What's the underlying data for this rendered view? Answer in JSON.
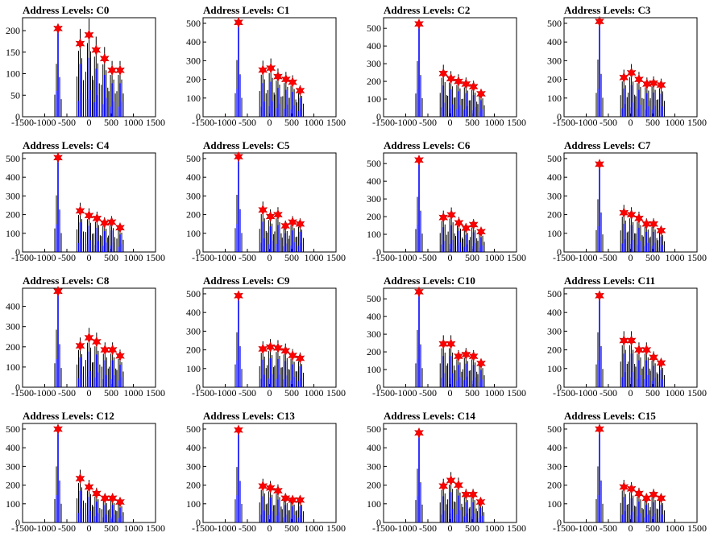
{
  "chart_data": [
    {
      "type": "bar",
      "title": "Address Levels: C0",
      "xlim": [
        -1500,
        1500
      ],
      "ylim": [
        0,
        230
      ],
      "xticks": [
        "-1500",
        "-1000",
        "-500",
        "0",
        "500",
        "1000",
        "1500"
      ],
      "yticks": [
        "0",
        "50",
        "100",
        "150",
        "200"
      ],
      "peaks": [
        {
          "x": -700,
          "y": 205
        },
        {
          "x": -200,
          "y": 170
        },
        {
          "x": 0,
          "y": 190
        },
        {
          "x": 160,
          "y": 155
        },
        {
          "x": 350,
          "y": 135
        },
        {
          "x": 520,
          "y": 108
        },
        {
          "x": 700,
          "y": 108
        }
      ]
    },
    {
      "type": "bar",
      "title": "Address Levels: C1",
      "xlim": [
        -1500,
        1500
      ],
      "ylim": [
        0,
        530
      ],
      "xticks": [
        "-1500",
        "-1000",
        "-500",
        "0",
        "500",
        "1000",
        "1500"
      ],
      "yticks": [
        "0",
        "100",
        "200",
        "300",
        "400",
        "500"
      ],
      "peaks": [
        {
          "x": -700,
          "y": 505
        },
        {
          "x": -150,
          "y": 250
        },
        {
          "x": 30,
          "y": 260
        },
        {
          "x": 190,
          "y": 215
        },
        {
          "x": 370,
          "y": 200
        },
        {
          "x": 520,
          "y": 185
        },
        {
          "x": 690,
          "y": 140
        }
      ]
    },
    {
      "type": "bar",
      "title": "Address Levels: C2",
      "xlim": [
        -1500,
        1500
      ],
      "ylim": [
        0,
        560
      ],
      "xticks": [
        "-1500",
        "-1000",
        "-500",
        "0",
        "500",
        "1000",
        "1500"
      ],
      "yticks": [
        "0",
        "100",
        "200",
        "300",
        "400",
        "500"
      ],
      "peaks": [
        {
          "x": -700,
          "y": 525
        },
        {
          "x": -150,
          "y": 245
        },
        {
          "x": 20,
          "y": 215
        },
        {
          "x": 190,
          "y": 200
        },
        {
          "x": 360,
          "y": 185
        },
        {
          "x": 530,
          "y": 170
        },
        {
          "x": 700,
          "y": 130
        }
      ]
    },
    {
      "type": "bar",
      "title": "Address Levels: C3",
      "xlim": [
        -1500,
        1500
      ],
      "ylim": [
        0,
        530
      ],
      "xticks": [
        "-1500",
        "-1000",
        "-500",
        "0",
        "500",
        "1000",
        "1500"
      ],
      "yticks": [
        "0",
        "100",
        "200",
        "300",
        "400",
        "500"
      ],
      "peaks": [
        {
          "x": -700,
          "y": 510
        },
        {
          "x": -150,
          "y": 210
        },
        {
          "x": 20,
          "y": 235
        },
        {
          "x": 190,
          "y": 200
        },
        {
          "x": 370,
          "y": 175
        },
        {
          "x": 520,
          "y": 180
        },
        {
          "x": 690,
          "y": 170
        }
      ]
    },
    {
      "type": "bar",
      "title": "Address Levels: C4",
      "xlim": [
        -1500,
        1500
      ],
      "ylim": [
        0,
        530
      ],
      "xticks": [
        "-1500",
        "-1000",
        "-500",
        "0",
        "500",
        "1000",
        "1500"
      ],
      "yticks": [
        "0",
        "100",
        "200",
        "300",
        "400",
        "500"
      ],
      "peaks": [
        {
          "x": -700,
          "y": 505
        },
        {
          "x": -200,
          "y": 220
        },
        {
          "x": 0,
          "y": 195
        },
        {
          "x": 180,
          "y": 180
        },
        {
          "x": 350,
          "y": 155
        },
        {
          "x": 510,
          "y": 160
        },
        {
          "x": 700,
          "y": 130
        }
      ]
    },
    {
      "type": "bar",
      "title": "Address Levels: C5",
      "xlim": [
        -1500,
        1500
      ],
      "ylim": [
        0,
        530
      ],
      "xticks": [
        "-1500",
        "-1000",
        "-500",
        "0",
        "500",
        "1000",
        "1500"
      ],
      "yticks": [
        "0",
        "100",
        "200",
        "300",
        "400",
        "500"
      ],
      "peaks": [
        {
          "x": -700,
          "y": 510
        },
        {
          "x": -150,
          "y": 225
        },
        {
          "x": 20,
          "y": 190
        },
        {
          "x": 190,
          "y": 200
        },
        {
          "x": 360,
          "y": 140
        },
        {
          "x": 520,
          "y": 160
        },
        {
          "x": 690,
          "y": 150
        }
      ]
    },
    {
      "type": "bar",
      "title": "Address Levels: C6",
      "xlim": [
        -1500,
        1500
      ],
      "ylim": [
        0,
        560
      ],
      "xticks": [
        "-1500",
        "-1000",
        "-500",
        "0",
        "500",
        "1000",
        "1500"
      ],
      "yticks": [
        "0",
        "100",
        "200",
        "300",
        "400",
        "500"
      ],
      "peaks": [
        {
          "x": -700,
          "y": 520
        },
        {
          "x": -150,
          "y": 195
        },
        {
          "x": 30,
          "y": 210
        },
        {
          "x": 200,
          "y": 165
        },
        {
          "x": 360,
          "y": 135
        },
        {
          "x": 530,
          "y": 155
        },
        {
          "x": 700,
          "y": 115
        }
      ]
    },
    {
      "type": "bar",
      "title": "Address Levels: C7",
      "xlim": [
        -1500,
        1500
      ],
      "ylim": [
        0,
        530
      ],
      "xticks": [
        "-1500",
        "-1000",
        "-500",
        "0",
        "500",
        "1000",
        "1500"
      ],
      "yticks": [
        "0",
        "100",
        "200",
        "300",
        "400",
        "500"
      ],
      "peaks": [
        {
          "x": -700,
          "y": 470
        },
        {
          "x": -150,
          "y": 210
        },
        {
          "x": 20,
          "y": 200
        },
        {
          "x": 190,
          "y": 180
        },
        {
          "x": 360,
          "y": 150
        },
        {
          "x": 520,
          "y": 150
        },
        {
          "x": 690,
          "y": 115
        }
      ]
    },
    {
      "type": "bar",
      "title": "Address Levels: C8",
      "xlim": [
        -1500,
        1500
      ],
      "ylim": [
        0,
        490
      ],
      "xticks": [
        "-1500",
        "-1000",
        "-500",
        "0",
        "500",
        "1000",
        "1500"
      ],
      "yticks": [
        "0",
        "100",
        "200",
        "300",
        "400"
      ],
      "peaks": [
        {
          "x": -700,
          "y": 475
        },
        {
          "x": -200,
          "y": 205
        },
        {
          "x": 0,
          "y": 245
        },
        {
          "x": 170,
          "y": 225
        },
        {
          "x": 360,
          "y": 185
        },
        {
          "x": 530,
          "y": 185
        },
        {
          "x": 700,
          "y": 155
        }
      ]
    },
    {
      "type": "bar",
      "title": "Address Levels: C9",
      "xlim": [
        -1500,
        1500
      ],
      "ylim": [
        0,
        530
      ],
      "xticks": [
        "-1500",
        "-1000",
        "-500",
        "0",
        "500",
        "1000",
        "1500"
      ],
      "yticks": [
        "0",
        "100",
        "200",
        "300",
        "400",
        "500"
      ],
      "peaks": [
        {
          "x": -700,
          "y": 490
        },
        {
          "x": -150,
          "y": 205
        },
        {
          "x": 20,
          "y": 215
        },
        {
          "x": 190,
          "y": 210
        },
        {
          "x": 360,
          "y": 195
        },
        {
          "x": 520,
          "y": 170
        },
        {
          "x": 690,
          "y": 155
        }
      ]
    },
    {
      "type": "bar",
      "title": "Address Levels: C10",
      "xlim": [
        -1500,
        1500
      ],
      "ylim": [
        0,
        560
      ],
      "xticks": [
        "-1500",
        "-1000",
        "-500",
        "0",
        "500",
        "1000",
        "1500"
      ],
      "yticks": [
        "0",
        "100",
        "200",
        "300",
        "400",
        "500"
      ],
      "peaks": [
        {
          "x": -700,
          "y": 540
        },
        {
          "x": -150,
          "y": 245
        },
        {
          "x": 20,
          "y": 245
        },
        {
          "x": 190,
          "y": 175
        },
        {
          "x": 360,
          "y": 185
        },
        {
          "x": 530,
          "y": 175
        },
        {
          "x": 700,
          "y": 135
        }
      ]
    },
    {
      "type": "bar",
      "title": "Address Levels: C11",
      "xlim": [
        -1500,
        1500
      ],
      "ylim": [
        0,
        530
      ],
      "xticks": [
        "-1500",
        "-1000",
        "-500",
        "0",
        "500",
        "1000",
        "1500"
      ],
      "yticks": [
        "0",
        "100",
        "200",
        "300",
        "400",
        "500"
      ],
      "peaks": [
        {
          "x": -700,
          "y": 490
        },
        {
          "x": -150,
          "y": 250
        },
        {
          "x": 20,
          "y": 250
        },
        {
          "x": 190,
          "y": 200
        },
        {
          "x": 360,
          "y": 200
        },
        {
          "x": 520,
          "y": 160
        },
        {
          "x": 690,
          "y": 130
        }
      ]
    },
    {
      "type": "bar",
      "title": "Address Levels: C12",
      "xlim": [
        -1500,
        1500
      ],
      "ylim": [
        0,
        530
      ],
      "xticks": [
        "-1500",
        "-1000",
        "-500",
        "0",
        "500",
        "1000",
        "1500"
      ],
      "yticks": [
        "0",
        "100",
        "200",
        "300",
        "400",
        "500"
      ],
      "peaks": [
        {
          "x": -700,
          "y": 500
        },
        {
          "x": -200,
          "y": 235
        },
        {
          "x": 0,
          "y": 190
        },
        {
          "x": 170,
          "y": 155
        },
        {
          "x": 360,
          "y": 130
        },
        {
          "x": 530,
          "y": 130
        },
        {
          "x": 700,
          "y": 110
        }
      ]
    },
    {
      "type": "bar",
      "title": "Address Levels: C13",
      "xlim": [
        -1500,
        1500
      ],
      "ylim": [
        0,
        530
      ],
      "xticks": [
        "-1500",
        "-1000",
        "-500",
        "0",
        "500",
        "1000",
        "1500"
      ],
      "yticks": [
        "0",
        "100",
        "200",
        "300",
        "400",
        "500"
      ],
      "peaks": [
        {
          "x": -700,
          "y": 495
        },
        {
          "x": -150,
          "y": 195
        },
        {
          "x": 20,
          "y": 185
        },
        {
          "x": 190,
          "y": 170
        },
        {
          "x": 360,
          "y": 130
        },
        {
          "x": 520,
          "y": 120
        },
        {
          "x": 690,
          "y": 120
        }
      ]
    },
    {
      "type": "bar",
      "title": "Address Levels: C14",
      "xlim": [
        -1500,
        1500
      ],
      "ylim": [
        0,
        530
      ],
      "xticks": [
        "-1500",
        "-1000",
        "-500",
        "0",
        "500",
        "1000",
        "1500"
      ],
      "yticks": [
        "0",
        "100",
        "200",
        "300",
        "400",
        "500"
      ],
      "peaks": [
        {
          "x": -700,
          "y": 480
        },
        {
          "x": -150,
          "y": 195
        },
        {
          "x": 20,
          "y": 225
        },
        {
          "x": 190,
          "y": 200
        },
        {
          "x": 360,
          "y": 150
        },
        {
          "x": 520,
          "y": 150
        },
        {
          "x": 690,
          "y": 110
        }
      ]
    },
    {
      "type": "bar",
      "title": "Address Levels: C15",
      "xlim": [
        -1500,
        1500
      ],
      "ylim": [
        0,
        530
      ],
      "xticks": [
        "-1500",
        "-1000",
        "-500",
        "0",
        "500",
        "1000",
        "1500"
      ],
      "yticks": [
        "0",
        "100",
        "200",
        "300",
        "400",
        "500"
      ],
      "peaks": [
        {
          "x": -700,
          "y": 500
        },
        {
          "x": -150,
          "y": 190
        },
        {
          "x": 20,
          "y": 180
        },
        {
          "x": 190,
          "y": 155
        },
        {
          "x": 360,
          "y": 130
        },
        {
          "x": 520,
          "y": 150
        },
        {
          "x": 690,
          "y": 130
        }
      ]
    }
  ],
  "colors": {
    "histogram": "#0000ff",
    "spikes": "#000000",
    "marker": "#ff0000",
    "axis": "#000000"
  }
}
